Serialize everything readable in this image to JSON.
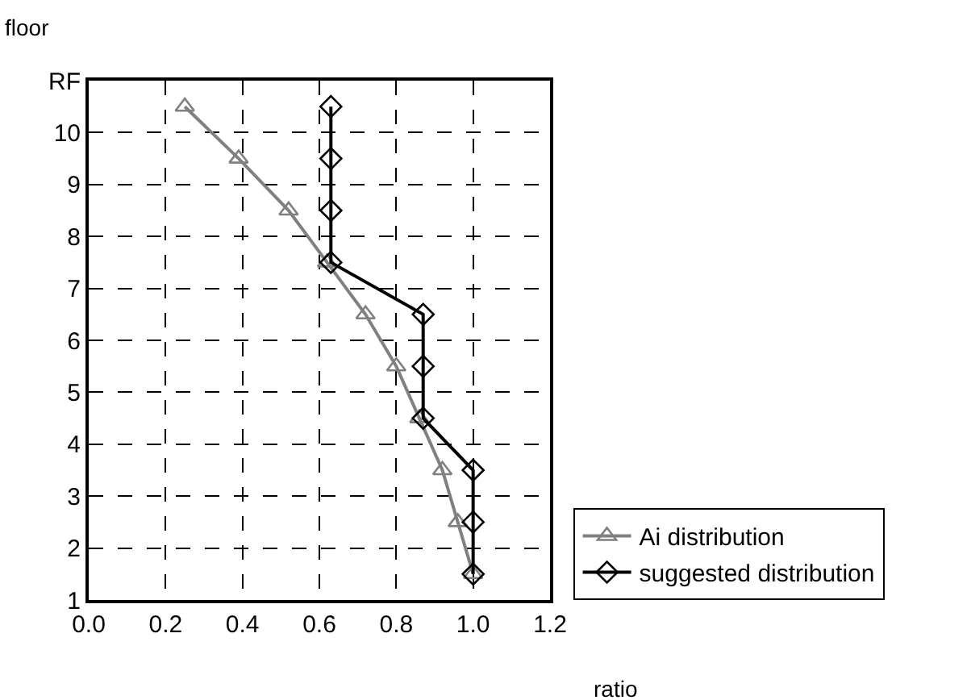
{
  "chart_data": {
    "type": "line",
    "xlabel": "ratio",
    "ylabel": "floor",
    "series": [
      {
        "name": "Ai distribution",
        "color": "#808080",
        "marker": "triangle",
        "x": [
          0.25,
          0.39,
          0.52,
          0.62,
          0.72,
          0.8,
          0.86,
          0.92,
          0.96,
          1.0
        ],
        "values": [
          10.5,
          9.5,
          8.5,
          7.5,
          6.5,
          5.5,
          4.5,
          3.5,
          2.5,
          1.5
        ]
      },
      {
        "name": "suggested distribution",
        "color": "#000000",
        "marker": "diamond",
        "x": [
          0.63,
          0.63,
          0.63,
          0.63,
          0.87,
          0.87,
          0.87,
          1.0,
          1.0,
          1.0
        ],
        "values": [
          10.5,
          9.5,
          8.5,
          7.5,
          6.5,
          5.5,
          4.5,
          3.5,
          2.5,
          1.5
        ]
      }
    ],
    "xlim": [
      0,
      1.2
    ],
    "xticks": [
      {
        "value": 0,
        "label": "0.0"
      },
      {
        "value": 0.2,
        "label": "0.2"
      },
      {
        "value": 0.4,
        "label": "0.4"
      },
      {
        "value": 0.6,
        "label": "0.6"
      },
      {
        "value": 0.8,
        "label": "0.8"
      },
      {
        "value": 1.0,
        "label": "1.0"
      },
      {
        "value": 1.2,
        "label": "1.2"
      }
    ],
    "ylim": [
      1,
      11
    ],
    "yticks": [
      1,
      2,
      3,
      4,
      5,
      6,
      7,
      8,
      9,
      10,
      {
        "value": 11,
        "label": "RF"
      }
    ],
    "grid": true,
    "legend": "bottom right",
    "line_style": "solid"
  }
}
